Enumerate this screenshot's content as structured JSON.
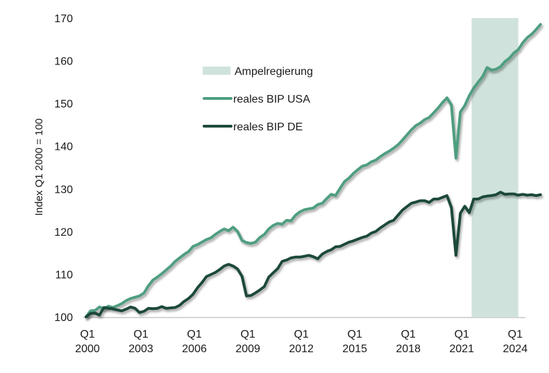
{
  "chart_data": {
    "type": "line",
    "title": "",
    "xlabel": "",
    "ylabel": "Index Q1 2000 = 100",
    "ylim": [
      100,
      170
    ],
    "yticks": [
      100,
      110,
      120,
      130,
      140,
      150,
      160,
      170
    ],
    "x_start": "Q1 2000",
    "x_end": "Q3 2024",
    "xtick_labels": [
      {
        "quarter_index": 0,
        "line1": "Q1",
        "line2": "2000"
      },
      {
        "quarter_index": 12,
        "line1": "Q1",
        "line2": "2003"
      },
      {
        "quarter_index": 24,
        "line1": "Q1",
        "line2": "2006"
      },
      {
        "quarter_index": 36,
        "line1": "Q1",
        "line2": "2009"
      },
      {
        "quarter_index": 48,
        "line1": "Q1",
        "line2": "2012"
      },
      {
        "quarter_index": 60,
        "line1": "Q1",
        "line2": "2015"
      },
      {
        "quarter_index": 72,
        "line1": "Q1",
        "line2": "2018"
      },
      {
        "quarter_index": 84,
        "line1": "Q1",
        "line2": "2021"
      },
      {
        "quarter_index": 96,
        "line1": "Q1",
        "line2": "2024"
      }
    ],
    "grid": false,
    "legend_position": "upper-center",
    "shaded_region": {
      "name": "Ampelregierung",
      "from_quarter_index": 87,
      "to_quarter_index": 97,
      "color": "#cfe3dc"
    },
    "series": [
      {
        "name": "reales BIP USA",
        "color": "#4f9e80",
        "values": [
          100.0,
          101.4,
          101.5,
          102.3,
          101.9,
          102.5,
          102.2,
          102.6,
          103.1,
          103.8,
          104.3,
          104.6,
          104.9,
          105.6,
          107.3,
          108.6,
          109.3,
          110.1,
          111.0,
          111.9,
          113.0,
          113.8,
          114.6,
          115.3,
          116.5,
          116.9,
          117.5,
          118.1,
          118.5,
          119.3,
          120.0,
          120.6,
          120.2,
          121.0,
          120.0,
          117.9,
          117.4,
          117.2,
          117.5,
          118.6,
          119.3,
          120.6,
          121.4,
          121.9,
          121.7,
          122.6,
          122.5,
          123.8,
          124.6,
          125.1,
          125.3,
          125.5,
          126.3,
          126.6,
          127.7,
          128.7,
          128.4,
          130.1,
          131.7,
          132.5,
          133.6,
          134.5,
          135.3,
          135.6,
          136.3,
          136.7,
          137.5,
          138.2,
          138.8,
          139.5,
          140.3,
          141.4,
          142.6,
          143.8,
          144.8,
          145.4,
          146.2,
          146.7,
          147.8,
          148.9,
          150.2,
          151.3,
          149.6,
          137.2,
          148.0,
          149.5,
          151.8,
          153.6,
          155.0,
          156.3,
          158.4,
          157.8,
          158.0,
          158.6,
          159.8,
          160.6,
          161.8,
          162.6,
          164.2,
          165.4,
          166.2,
          167.3,
          168.5
        ]
      },
      {
        "name": "reales BIP DE",
        "color": "#1f4a3a",
        "values": [
          100.0,
          100.8,
          100.9,
          100.4,
          102.2,
          102.0,
          101.9,
          101.6,
          101.4,
          101.8,
          102.3,
          102.0,
          101.0,
          101.3,
          102.0,
          101.9,
          102.0,
          102.4,
          102.0,
          102.1,
          102.2,
          102.7,
          103.6,
          104.3,
          105.3,
          106.8,
          108.0,
          109.4,
          109.9,
          110.4,
          111.1,
          111.9,
          112.3,
          111.9,
          111.2,
          109.5,
          104.9,
          105.0,
          105.6,
          106.3,
          107.1,
          109.3,
          110.3,
          111.3,
          113.0,
          113.3,
          113.8,
          114.0,
          114.0,
          114.2,
          114.4,
          114.1,
          113.6,
          114.7,
          115.3,
          115.7,
          116.4,
          116.5,
          117.0,
          117.5,
          117.8,
          118.2,
          118.6,
          118.9,
          119.6,
          120.0,
          120.8,
          121.5,
          122.2,
          122.6,
          123.8,
          125.0,
          125.8,
          126.6,
          126.9,
          127.2,
          127.2,
          126.8,
          127.6,
          127.6,
          128.0,
          128.4,
          125.6,
          114.4,
          124.3,
          125.9,
          124.4,
          127.6,
          127.6,
          128.1,
          128.3,
          128.4,
          128.6,
          129.2,
          128.7,
          128.8,
          128.8,
          128.5,
          128.7,
          128.5,
          128.6,
          128.4,
          128.6
        ]
      }
    ]
  }
}
